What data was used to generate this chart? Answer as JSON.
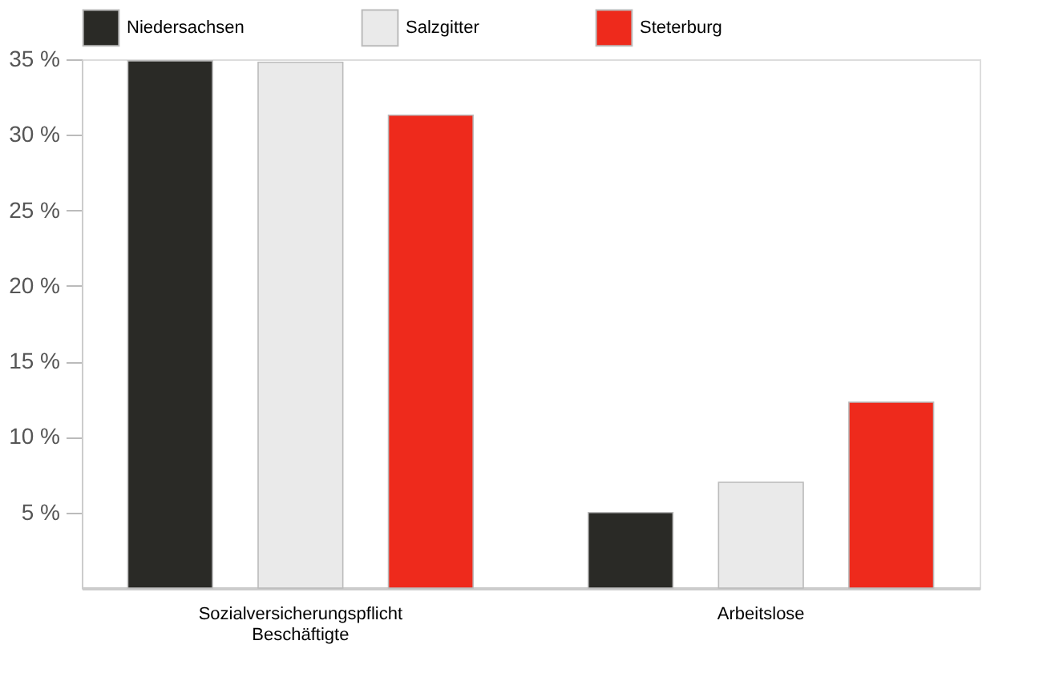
{
  "chart_data": {
    "type": "bar",
    "categories": [
      "Sozialversicherungspflicht\nBeschäftigte",
      "Arbeitslose"
    ],
    "series": [
      {
        "name": "Niedersachsen",
        "color": "#2a2a26",
        "values": [
          34.9,
          5.0
        ]
      },
      {
        "name": "Salzgitter",
        "color": "#eaeaea",
        "values": [
          34.8,
          7.0
        ]
      },
      {
        "name": "Steterburg",
        "color": "#ee2a1c",
        "values": [
          31.3,
          12.3
        ]
      }
    ],
    "ylim": [
      0,
      35
    ],
    "yticks": [
      {
        "value": 5,
        "label": "5 %"
      },
      {
        "value": 10,
        "label": "10 %"
      },
      {
        "value": 15,
        "label": "15 %"
      },
      {
        "value": 20,
        "label": "20 %"
      },
      {
        "value": 25,
        "label": "25 %"
      },
      {
        "value": 30,
        "label": "30 %"
      },
      {
        "value": 35,
        "label": "35 %"
      }
    ],
    "grid": false,
    "legend": "top left"
  }
}
